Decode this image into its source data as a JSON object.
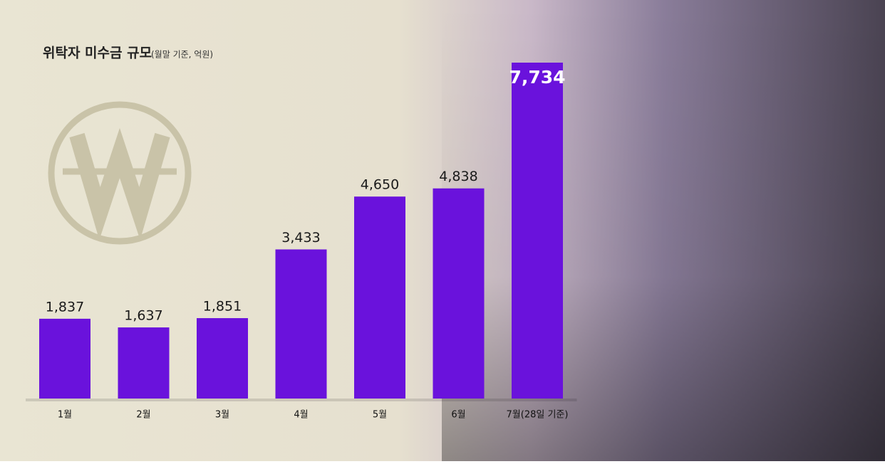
{
  "chart_data": {
    "type": "bar",
    "title": "위탁자 미수금 규모",
    "subtitle": "(월말 기준, 억원)",
    "categories": [
      "1월",
      "2월",
      "3월",
      "4월",
      "5월",
      "6월",
      "7월(28일 기준)"
    ],
    "values": [
      1837,
      1637,
      1851,
      3433,
      4650,
      4838,
      7734
    ],
    "value_labels": [
      "1,837",
      "1,637",
      "1,851",
      "3,433",
      "4,650",
      "4,838",
      "7,734"
    ],
    "color": "#6a12dc"
  }
}
